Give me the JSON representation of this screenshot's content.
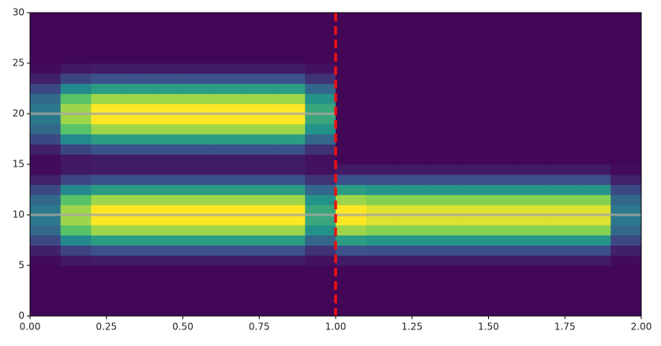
{
  "chart_data": {
    "type": "heatmap",
    "colormap": "viridis",
    "xlim": [
      0,
      2
    ],
    "ylim": [
      0,
      30
    ],
    "xticks": [
      {
        "value": 0,
        "label": "0.00"
      },
      {
        "value": 0.25,
        "label": "0.25"
      },
      {
        "value": 0.5,
        "label": "0.50"
      },
      {
        "value": 0.75,
        "label": "0.75"
      },
      {
        "value": 1,
        "label": "1.00"
      },
      {
        "value": 1.25,
        "label": "1.25"
      },
      {
        "value": 1.5,
        "label": "1.50"
      },
      {
        "value": 1.75,
        "label": "1.75"
      },
      {
        "value": 2,
        "label": "2.00"
      }
    ],
    "yticks": [
      0,
      5,
      10,
      15,
      20,
      25,
      30
    ],
    "z": [
      [
        0.02,
        0.02,
        0.02,
        0.02,
        0.02,
        0.02,
        0.02,
        0.02,
        0.02,
        0.02,
        0.02,
        0.02,
        0.02,
        0.02,
        0.02,
        0.02,
        0.02,
        0.02,
        0.02,
        0.02
      ],
      [
        0.02,
        0.02,
        0.02,
        0.02,
        0.02,
        0.02,
        0.02,
        0.02,
        0.02,
        0.02,
        0.02,
        0.02,
        0.02,
        0.02,
        0.02,
        0.02,
        0.02,
        0.02,
        0.02,
        0.02
      ],
      [
        0.02,
        0.02,
        0.02,
        0.02,
        0.02,
        0.02,
        0.02,
        0.02,
        0.02,
        0.02,
        0.02,
        0.02,
        0.02,
        0.02,
        0.02,
        0.02,
        0.02,
        0.02,
        0.02,
        0.02
      ],
      [
        0.02,
        0.02,
        0.02,
        0.02,
        0.02,
        0.02,
        0.02,
        0.02,
        0.02,
        0.02,
        0.02,
        0.02,
        0.02,
        0.02,
        0.02,
        0.02,
        0.02,
        0.02,
        0.02,
        0.02
      ],
      [
        0.02,
        0.02,
        0.02,
        0.02,
        0.02,
        0.02,
        0.02,
        0.02,
        0.02,
        0.02,
        0.02,
        0.02,
        0.02,
        0.02,
        0.02,
        0.02,
        0.02,
        0.02,
        0.02,
        0.02
      ],
      [
        0.03,
        0.07,
        0.08,
        0.08,
        0.08,
        0.08,
        0.08,
        0.08,
        0.08,
        0.05,
        0.08,
        0.08,
        0.08,
        0.08,
        0.08,
        0.08,
        0.08,
        0.08,
        0.08,
        0.03
      ],
      [
        0.1,
        0.21,
        0.25,
        0.25,
        0.25,
        0.25,
        0.25,
        0.25,
        0.25,
        0.15,
        0.25,
        0.24,
        0.24,
        0.24,
        0.24,
        0.24,
        0.24,
        0.24,
        0.24,
        0.1
      ],
      [
        0.22,
        0.47,
        0.55,
        0.55,
        0.55,
        0.55,
        0.55,
        0.55,
        0.55,
        0.33,
        0.55,
        0.52,
        0.52,
        0.52,
        0.52,
        0.52,
        0.52,
        0.52,
        0.52,
        0.22
      ],
      [
        0.34,
        0.72,
        0.85,
        0.85,
        0.85,
        0.85,
        0.85,
        0.85,
        0.85,
        0.51,
        0.85,
        0.81,
        0.81,
        0.81,
        0.81,
        0.81,
        0.81,
        0.81,
        0.81,
        0.34
      ],
      [
        0.4,
        0.85,
        1,
        1,
        1,
        1,
        1,
        1,
        1,
        0.6,
        1,
        0.95,
        0.95,
        0.95,
        0.95,
        0.95,
        0.95,
        0.95,
        0.95,
        0.4
      ],
      [
        0.4,
        0.85,
        1,
        1,
        1,
        1,
        1,
        1,
        1,
        0.6,
        1,
        0.95,
        0.95,
        0.95,
        0.95,
        0.95,
        0.95,
        0.95,
        0.95,
        0.4
      ],
      [
        0.34,
        0.72,
        0.85,
        0.85,
        0.85,
        0.85,
        0.85,
        0.85,
        0.85,
        0.51,
        0.85,
        0.81,
        0.81,
        0.81,
        0.81,
        0.81,
        0.81,
        0.81,
        0.81,
        0.34
      ],
      [
        0.22,
        0.47,
        0.55,
        0.55,
        0.55,
        0.55,
        0.55,
        0.55,
        0.55,
        0.33,
        0.55,
        0.52,
        0.52,
        0.52,
        0.52,
        0.52,
        0.52,
        0.52,
        0.52,
        0.22
      ],
      [
        0.1,
        0.21,
        0.25,
        0.25,
        0.25,
        0.25,
        0.25,
        0.25,
        0.25,
        0.15,
        0.25,
        0.24,
        0.24,
        0.24,
        0.24,
        0.24,
        0.24,
        0.24,
        0.24,
        0.1
      ],
      [
        0.03,
        0.07,
        0.08,
        0.08,
        0.08,
        0.08,
        0.08,
        0.08,
        0.08,
        0.05,
        0.08,
        0.08,
        0.08,
        0.08,
        0.08,
        0.08,
        0.08,
        0.08,
        0.08,
        0.03
      ],
      [
        0.03,
        0.07,
        0.08,
        0.08,
        0.08,
        0.08,
        0.08,
        0.08,
        0.08,
        0.05,
        0.02,
        0.02,
        0.02,
        0.02,
        0.02,
        0.02,
        0.02,
        0.02,
        0.02,
        0.02
      ],
      [
        0.1,
        0.21,
        0.25,
        0.25,
        0.25,
        0.25,
        0.25,
        0.25,
        0.25,
        0.15,
        0.02,
        0.02,
        0.02,
        0.02,
        0.02,
        0.02,
        0.02,
        0.02,
        0.02,
        0.02
      ],
      [
        0.22,
        0.47,
        0.55,
        0.55,
        0.55,
        0.55,
        0.55,
        0.55,
        0.55,
        0.33,
        0.02,
        0.02,
        0.02,
        0.02,
        0.02,
        0.02,
        0.02,
        0.02,
        0.02,
        0.02
      ],
      [
        0.34,
        0.72,
        0.85,
        0.85,
        0.85,
        0.85,
        0.85,
        0.85,
        0.85,
        0.51,
        0.02,
        0.02,
        0.02,
        0.02,
        0.02,
        0.02,
        0.02,
        0.02,
        0.02,
        0.02
      ],
      [
        0.4,
        0.85,
        1,
        1,
        1,
        1,
        1,
        1,
        1,
        0.6,
        0.02,
        0.02,
        0.02,
        0.02,
        0.02,
        0.02,
        0.02,
        0.02,
        0.02,
        0.02
      ],
      [
        0.4,
        0.85,
        1,
        1,
        1,
        1,
        1,
        1,
        1,
        0.6,
        0.02,
        0.02,
        0.02,
        0.02,
        0.02,
        0.02,
        0.02,
        0.02,
        0.02,
        0.02
      ],
      [
        0.34,
        0.72,
        0.85,
        0.85,
        0.85,
        0.85,
        0.85,
        0.85,
        0.85,
        0.51,
        0.02,
        0.02,
        0.02,
        0.02,
        0.02,
        0.02,
        0.02,
        0.02,
        0.02,
        0.02
      ],
      [
        0.22,
        0.47,
        0.55,
        0.55,
        0.55,
        0.55,
        0.55,
        0.55,
        0.55,
        0.33,
        0.02,
        0.02,
        0.02,
        0.02,
        0.02,
        0.02,
        0.02,
        0.02,
        0.02,
        0.02
      ],
      [
        0.1,
        0.21,
        0.25,
        0.25,
        0.25,
        0.25,
        0.25,
        0.25,
        0.25,
        0.15,
        0.02,
        0.02,
        0.02,
        0.02,
        0.02,
        0.02,
        0.02,
        0.02,
        0.02,
        0.02
      ],
      [
        0.03,
        0.07,
        0.08,
        0.08,
        0.08,
        0.08,
        0.08,
        0.08,
        0.08,
        0.05,
        0.02,
        0.02,
        0.02,
        0.02,
        0.02,
        0.02,
        0.02,
        0.02,
        0.02,
        0.02
      ],
      [
        0.02,
        0.02,
        0.02,
        0.02,
        0.02,
        0.02,
        0.02,
        0.02,
        0.02,
        0.02,
        0.02,
        0.02,
        0.02,
        0.02,
        0.02,
        0.02,
        0.02,
        0.02,
        0.02,
        0.02
      ],
      [
        0.02,
        0.02,
        0.02,
        0.02,
        0.02,
        0.02,
        0.02,
        0.02,
        0.02,
        0.02,
        0.02,
        0.02,
        0.02,
        0.02,
        0.02,
        0.02,
        0.02,
        0.02,
        0.02,
        0.02
      ],
      [
        0.02,
        0.02,
        0.02,
        0.02,
        0.02,
        0.02,
        0.02,
        0.02,
        0.02,
        0.02,
        0.02,
        0.02,
        0.02,
        0.02,
        0.02,
        0.02,
        0.02,
        0.02,
        0.02,
        0.02
      ],
      [
        0.02,
        0.02,
        0.02,
        0.02,
        0.02,
        0.02,
        0.02,
        0.02,
        0.02,
        0.02,
        0.02,
        0.02,
        0.02,
        0.02,
        0.02,
        0.02,
        0.02,
        0.02,
        0.02,
        0.02
      ],
      [
        0.02,
        0.02,
        0.02,
        0.02,
        0.02,
        0.02,
        0.02,
        0.02,
        0.02,
        0.02,
        0.02,
        0.02,
        0.02,
        0.02,
        0.02,
        0.02,
        0.02,
        0.02,
        0.02,
        0.02
      ]
    ],
    "lines": [
      {
        "x": [
          0,
          1
        ],
        "values": [
          20,
          20
        ],
        "color": "#a8a8a0"
      },
      {
        "x": [
          0,
          2
        ],
        "values": [
          10,
          10
        ],
        "color": "#a8a8a0"
      }
    ],
    "vline": {
      "x": 1,
      "color": "#ee1111"
    }
  }
}
